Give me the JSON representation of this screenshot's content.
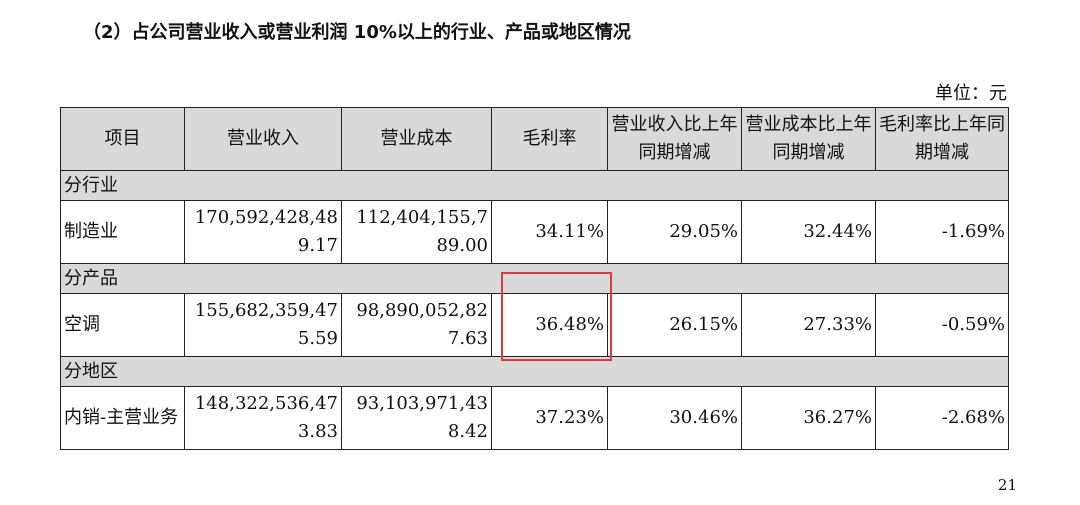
{
  "heading": "（2）占公司营业收入或营业利润 10%以上的行业、产品或地区情况",
  "unit": "单位：元",
  "page_number": "21",
  "table": {
    "headers": [
      "项目",
      "营业收入",
      "营业成本",
      "毛利率",
      "营业收入比上年同期增减",
      "营业成本比上年同期增减",
      "毛利率比上年同期增减"
    ],
    "sections": [
      {
        "title": "分行业",
        "row": {
          "name": "制造业",
          "revenue": "170,592,428,489.17",
          "cost": "112,404,155,789.00",
          "gross_margin": "34.11%",
          "revenue_change": "29.05%",
          "cost_change": "32.44%",
          "margin_change": "-1.69%"
        }
      },
      {
        "title": "分产品",
        "row": {
          "name": "空调",
          "revenue": "155,682,359,475.59",
          "cost": "98,890,052,827.63",
          "gross_margin": "36.48%",
          "revenue_change": "26.15%",
          "cost_change": "27.33%",
          "margin_change": "-0.59%"
        }
      },
      {
        "title": "分地区",
        "row": {
          "name": "内销-主营业务",
          "revenue": "148,322,536,473.83",
          "cost": "93,103,971,438.42",
          "gross_margin": "37.23%",
          "revenue_change": "30.46%",
          "cost_change": "36.27%",
          "margin_change": "-2.68%"
        }
      }
    ]
  },
  "annotation_color": "#e0393e"
}
